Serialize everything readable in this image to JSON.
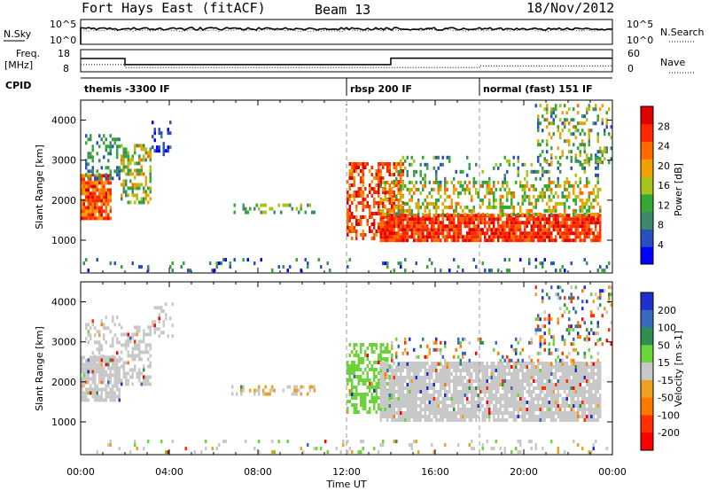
{
  "header": {
    "station": "Fort Hays East (fitACF)",
    "beam": "Beam 13",
    "date": "18/Nov/2012"
  },
  "noise_panel": {
    "left_label": "N.Sky",
    "right_label": "N.Search",
    "left_ticks": [
      "10^5",
      "10^0"
    ],
    "right_ticks": [
      "10^5",
      "10^0"
    ]
  },
  "freq_panel": {
    "left_label_1": "Freq.",
    "left_label_2": "[MHz]",
    "right_label": "Nave",
    "left_ticks": [
      "18",
      "8"
    ],
    "right_ticks": [
      "60",
      "0"
    ],
    "freq_steps": [
      {
        "from": 0,
        "to": 2,
        "value": 14.8
      },
      {
        "from": 2,
        "to": 14,
        "value": 11.7
      },
      {
        "from": 14,
        "to": 24,
        "value": 15.0
      }
    ],
    "nave_steps": [
      {
        "from": 0,
        "to": 2,
        "value": 22
      },
      {
        "from": 2,
        "to": 18,
        "value": 13
      },
      {
        "from": 18,
        "to": 24,
        "value": 18
      }
    ]
  },
  "cpid": {
    "label": "CPID",
    "segments": [
      {
        "text": "themis -3300 IF",
        "start": 0
      },
      {
        "text": "rbsp 200 IF",
        "start": 12
      },
      {
        "text": "normal (fast) 151 IF",
        "start": 18
      }
    ]
  },
  "colors": {
    "power": [
      "#0000ff",
      "#2a4fbf",
      "#3d8a66",
      "#33a833",
      "#a8c41a",
      "#f0a000",
      "#ff6a00",
      "#ff2800",
      "#e00000"
    ],
    "velocity": [
      "#2030d0",
      "#3a6ac0",
      "#2f8f50",
      "#6cd43a",
      "#c8c8c8",
      "#f0a020",
      "#ff7800",
      "#ff3000",
      "#ff0000"
    ]
  },
  "chart_data": [
    {
      "type": "heatmap",
      "quantity": "Power",
      "ylabel": "Slant Range [km]",
      "xlim": [
        0,
        24
      ],
      "ylim": [
        180,
        4500
      ],
      "yticks": [
        "1000",
        "2000",
        "3000",
        "4000"
      ],
      "colorbar_label": "Power [dB]",
      "colorbar_ticks": [
        "4",
        "8",
        "12",
        "16",
        "20",
        "24",
        "28"
      ],
      "colorbar_range": [
        0,
        32
      ],
      "regions": [
        {
          "t0": 0.0,
          "t1": 1.4,
          "r0": 1500,
          "r1": 2600,
          "v0": 18,
          "v1": 30,
          "density": 0.9
        },
        {
          "t0": 0.2,
          "t1": 1.8,
          "r0": 2500,
          "r1": 3600,
          "v0": 4,
          "v1": 14,
          "density": 0.35
        },
        {
          "t0": 1.8,
          "t1": 3.2,
          "r0": 1900,
          "r1": 3400,
          "v0": 8,
          "v1": 22,
          "density": 0.5
        },
        {
          "t0": 3.2,
          "t1": 4.2,
          "r0": 3100,
          "r1": 3900,
          "v0": 2,
          "v1": 8,
          "density": 0.3
        },
        {
          "t0": 6.8,
          "t1": 10.5,
          "r0": 1650,
          "r1": 1900,
          "v0": 8,
          "v1": 18,
          "density": 0.35
        },
        {
          "t0": 12.0,
          "t1": 14.5,
          "r0": 1000,
          "r1": 2900,
          "v0": 20,
          "v1": 31,
          "density": 0.6
        },
        {
          "t0": 13.5,
          "t1": 23.5,
          "r0": 950,
          "r1": 1600,
          "v0": 22,
          "v1": 31,
          "density": 0.85
        },
        {
          "t0": 13.5,
          "t1": 23.5,
          "r0": 1600,
          "r1": 2400,
          "v0": 10,
          "v1": 24,
          "density": 0.45
        },
        {
          "t0": 14.0,
          "t1": 23.5,
          "r0": 2400,
          "r1": 3100,
          "v0": 4,
          "v1": 16,
          "density": 0.2
        },
        {
          "t0": 20.5,
          "t1": 24.0,
          "r0": 2900,
          "r1": 4400,
          "v0": 6,
          "v1": 22,
          "density": 0.25
        },
        {
          "t0": 0.0,
          "t1": 24.0,
          "r0": 200,
          "r1": 500,
          "v0": 2,
          "v1": 14,
          "density": 0.12
        }
      ]
    },
    {
      "type": "heatmap",
      "quantity": "Velocity",
      "ylabel": "Slant Range [km]",
      "xlabel": "Time UT",
      "xlim": [
        0,
        24
      ],
      "ylim": [
        180,
        4500
      ],
      "yticks": [
        "1000",
        "2000",
        "3000",
        "4000"
      ],
      "xticks": [
        "00:00",
        "04:00",
        "08:00",
        "12:00",
        "16:00",
        "20:00",
        "00:00"
      ],
      "colorbar_label": "Velocity [m s-1]",
      "colorbar_ticks": [
        "200",
        "100",
        "50",
        "15",
        "-15",
        "-50",
        "-100",
        "-200"
      ],
      "regions": [
        {
          "t0": 0.0,
          "t1": 1.8,
          "r0": 1500,
          "r1": 2600,
          "v0": 4,
          "v1": 4,
          "density": 0.85
        },
        {
          "t0": 0.2,
          "t1": 1.8,
          "r0": 2500,
          "r1": 3600,
          "v0": 4,
          "v1": 4,
          "density": 0.35
        },
        {
          "t0": 1.8,
          "t1": 3.2,
          "r0": 1900,
          "r1": 3400,
          "v0": 4,
          "v1": 4,
          "density": 0.45
        },
        {
          "t0": 3.2,
          "t1": 4.2,
          "r0": 3100,
          "r1": 3900,
          "v0": 4,
          "v1": 4,
          "density": 0.3
        },
        {
          "t0": 6.8,
          "t1": 10.5,
          "r0": 1650,
          "r1": 1900,
          "v0": 4,
          "v1": 5,
          "density": 0.4
        },
        {
          "t0": 12.0,
          "t1": 14.0,
          "r0": 1200,
          "r1": 2900,
          "v0": 3,
          "v1": 3,
          "density": 0.55
        },
        {
          "t0": 13.5,
          "t1": 23.5,
          "r0": 1000,
          "r1": 2500,
          "v0": 4,
          "v1": 4,
          "density": 0.85
        },
        {
          "t0": 14.0,
          "t1": 23.5,
          "r0": 2400,
          "r1": 3100,
          "v0": 0,
          "v1": 8,
          "density": 0.18
        },
        {
          "t0": 20.5,
          "t1": 24.0,
          "r0": 2900,
          "r1": 4400,
          "v0": 0,
          "v1": 8,
          "density": 0.25
        },
        {
          "t0": 0.0,
          "t1": 24.0,
          "r0": 200,
          "r1": 500,
          "v0": 3,
          "v1": 5,
          "density": 0.12
        }
      ]
    }
  ]
}
